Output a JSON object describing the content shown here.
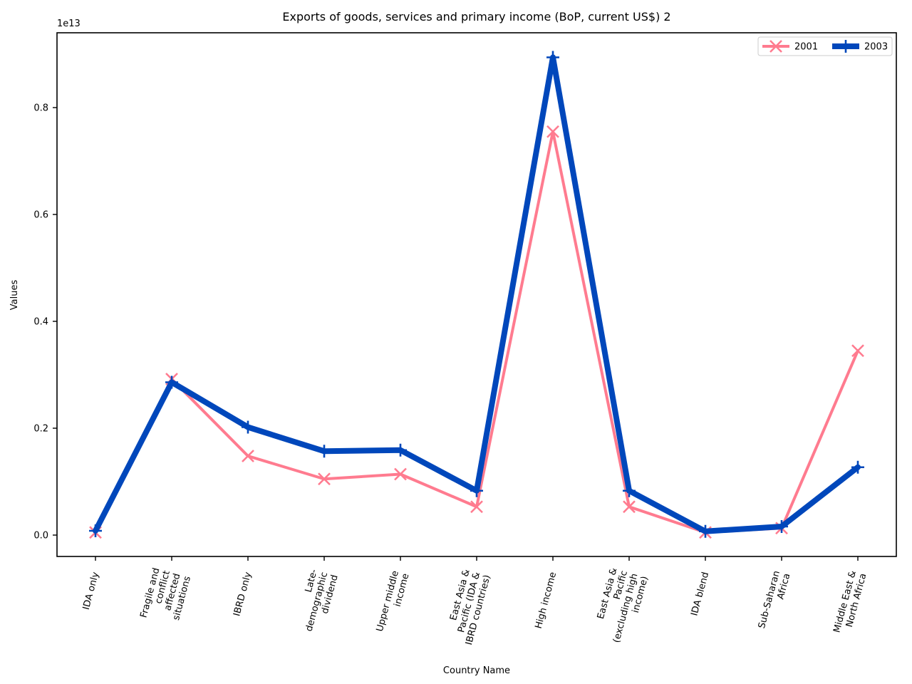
{
  "chart_data": {
    "type": "line",
    "title": "Exports of goods, services and primary income (BoP, current US$) 2",
    "xlabel": "Country Name",
    "ylabel": "Values",
    "y_scale_label": "1e13",
    "ylim": [
      -0.04,
      0.94
    ],
    "yticks": [
      0.0,
      0.2,
      0.4,
      0.6,
      0.8
    ],
    "ytick_labels": [
      "0.0",
      "0.2",
      "0.4",
      "0.6",
      "0.8"
    ],
    "grid": false,
    "legend": "top-right",
    "categories": [
      "IDA only",
      "Fragile and conflict affected situations",
      "IBRD only",
      "Late-demographic dividend",
      "Upper middle income",
      "East Asia & Pacific (IDA & IBRD countries)",
      "High income",
      "East Asia & Pacific (excluding high income)",
      "IDA blend",
      "Sub-Saharan Africa",
      "Middle East & North Africa"
    ],
    "category_label_lines": [
      [
        "IDA only"
      ],
      [
        "Fragile and",
        "conflict",
        "affected",
        "situations"
      ],
      [
        "IBRD only"
      ],
      [
        "Late-",
        "demographic",
        "dividend"
      ],
      [
        "Upper middle",
        "income"
      ],
      [
        "East Asia &",
        "Pacific (IDA &",
        "IBRD countries)"
      ],
      [
        "High income"
      ],
      [
        "East Asia &",
        "Pacific",
        "(excluding high",
        "income)"
      ],
      [
        "IDA blend"
      ],
      [
        "Sub-Saharan",
        "Africa"
      ],
      [
        "Middle East &",
        "North Africa"
      ]
    ],
    "series": [
      {
        "name": "2001",
        "color": "#ff7b8f",
        "marker": "x",
        "values": [
          0.005,
          0.292,
          0.148,
          0.105,
          0.114,
          0.053,
          0.755,
          0.053,
          0.005,
          0.013,
          0.345
        ]
      },
      {
        "name": "2003",
        "color": "#0047bb",
        "marker": "plus",
        "values": [
          0.008,
          0.286,
          0.202,
          0.157,
          0.159,
          0.083,
          0.894,
          0.083,
          0.007,
          0.016,
          0.127
        ]
      }
    ]
  }
}
